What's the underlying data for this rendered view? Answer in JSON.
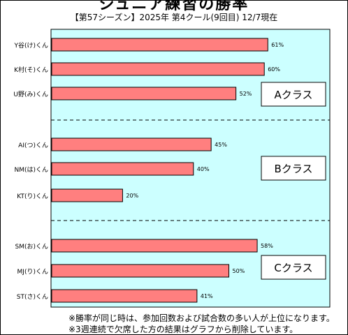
{
  "chart_data": {
    "type": "bar",
    "orientation": "horizontal",
    "title": "ジュニア練習の勝率",
    "subtitle": "【第57シーズン】2025年 第4クール(9回目) 12/7現在",
    "xlim": [
      0,
      100
    ],
    "plot_background": "#ccffff",
    "bar_color": "#ff7f7f",
    "groups": [
      {
        "name": "Aクラス",
        "items": [
          {
            "label": "Y谷(け)くん",
            "value": 61,
            "value_label": "61%"
          },
          {
            "label": "K村(そ)くん",
            "value": 60,
            "value_label": "60%"
          },
          {
            "label": "U野(み)くん",
            "value": 52,
            "value_label": "52%"
          }
        ]
      },
      {
        "name": "Bクラス",
        "items": [
          {
            "label": "AI(つ)くん",
            "value": 45,
            "value_label": "45%"
          },
          {
            "label": "NM(は)くん",
            "value": 40,
            "value_label": "40%"
          },
          {
            "label": "KT(り)くん",
            "value": 20,
            "value_label": "20%"
          }
        ]
      },
      {
        "name": "Cクラス",
        "items": [
          {
            "label": "SM(お)くん",
            "value": 58,
            "value_label": "58%"
          },
          {
            "label": "MJ(り)くん",
            "value": 50,
            "value_label": "50%"
          },
          {
            "label": "ST(さ)くん",
            "value": 41,
            "value_label": "41%"
          }
        ]
      }
    ]
  },
  "notes": [
    "※勝率が同じ時は、参加回数および試合数の多い人が上位になります。",
    "※3週連続で欠席した方の結果はグラフから削除しています。"
  ]
}
